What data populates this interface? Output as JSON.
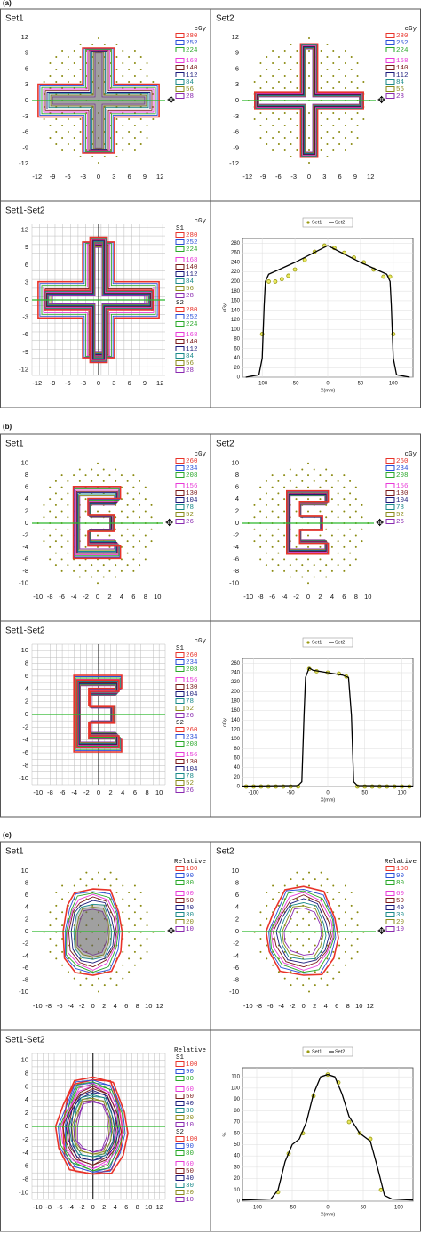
{
  "figures": [
    {
      "label": "(a)",
      "x_ticks": [
        -12,
        -9,
        -6,
        -3,
        0,
        3,
        6,
        9,
        12
      ],
      "y_ticks": [
        12,
        9,
        6,
        3,
        0,
        -3,
        -6,
        -9,
        -12
      ],
      "level_colors": [
        "#e8332a",
        "#2a4fd8",
        "#2aa82a",
        "#e83ad8",
        "#7a1a1a",
        "#1a1a7a",
        "#1a8a8a",
        "#8a8a1a",
        "#8a2ab0"
      ],
      "panels": [
        {
          "title": "Set1",
          "legend": {
            "unit": "cGy",
            "groups": [
              {
                "levels": [
                  280,
                  252,
                  224,
                  168,
                  140,
                  112,
                  84,
                  56,
                  28
                ]
              }
            ]
          }
        },
        {
          "title": "Set2",
          "legend": {
            "unit": "cGy",
            "groups": [
              {
                "levels": [
                  280,
                  252,
                  224,
                  168,
                  140,
                  112,
                  84,
                  56,
                  28
                ]
              }
            ]
          }
        },
        {
          "title": "Set1-Set2",
          "legend": {
            "unit": "cGy",
            "groups": [
              {
                "label": "S1",
                "levels": [
                  280,
                  252,
                  224,
                  168,
                  140,
                  112,
                  84,
                  56,
                  28
                ]
              },
              {
                "label": "S2",
                "levels": [
                  280,
                  252,
                  224,
                  168,
                  140,
                  112,
                  84,
                  56,
                  28
                ]
              }
            ]
          }
        }
      ]
    },
    {
      "label": "(b)",
      "x_ticks": [
        -10,
        -8,
        -6,
        -4,
        -2,
        0,
        2,
        4,
        6,
        8,
        10
      ],
      "y_ticks": [
        10,
        8,
        6,
        4,
        2,
        0,
        -2,
        -4,
        -6,
        -8,
        -10
      ],
      "level_colors": [
        "#e8332a",
        "#2a4fd8",
        "#2aa82a",
        "#e83ad8",
        "#7a1a1a",
        "#1a1a7a",
        "#1a8a8a",
        "#8a8a1a",
        "#8a2ab0"
      ],
      "panels": [
        {
          "title": "Set1",
          "legend": {
            "unit": "cGy",
            "groups": [
              {
                "levels": [
                  260,
                  234,
                  208,
                  156,
                  130,
                  104,
                  78,
                  52,
                  26
                ]
              }
            ]
          }
        },
        {
          "title": "Set2",
          "legend": {
            "unit": "cGy",
            "groups": [
              {
                "levels": [
                  260,
                  234,
                  208,
                  156,
                  130,
                  104,
                  78,
                  52,
                  26
                ]
              }
            ]
          }
        },
        {
          "title": "Set1-Set2",
          "legend": {
            "unit": "cGy",
            "groups": [
              {
                "label": "S1",
                "levels": [
                  260,
                  234,
                  208,
                  156,
                  130,
                  104,
                  78,
                  52,
                  26
                ]
              },
              {
                "label": "S2",
                "levels": [
                  260,
                  234,
                  208,
                  156,
                  130,
                  104,
                  78,
                  52,
                  26
                ]
              }
            ]
          }
        }
      ]
    },
    {
      "label": "(c)",
      "x_ticks": [
        -10,
        -8,
        -6,
        -4,
        -2,
        0,
        2,
        4,
        6,
        8,
        10,
        12
      ],
      "y_ticks": [
        10,
        8,
        6,
        4,
        2,
        0,
        -2,
        -4,
        -6,
        -8,
        -10
      ],
      "level_colors": [
        "#e8332a",
        "#2a4fd8",
        "#2aa82a",
        "#e83ad8",
        "#7a1a1a",
        "#1a1a7a",
        "#1a8a8a",
        "#8a8a1a",
        "#8a2ab0"
      ],
      "panels": [
        {
          "title": "Set1",
          "legend": {
            "unit": "Relative",
            "groups": [
              {
                "levels": [
                  100,
                  90,
                  80,
                  60,
                  50,
                  40,
                  30,
                  20,
                  10
                ]
              }
            ]
          }
        },
        {
          "title": "Set2",
          "legend": {
            "unit": "Relative",
            "groups": [
              {
                "levels": [
                  100,
                  90,
                  80,
                  60,
                  50,
                  40,
                  30,
                  20,
                  10
                ]
              }
            ]
          }
        },
        {
          "title": "Set1-Set2",
          "legend": {
            "unit": "Relative",
            "groups": [
              {
                "label": "S1",
                "levels": [
                  100,
                  90,
                  80,
                  60,
                  50,
                  40,
                  30,
                  20,
                  10
                ]
              },
              {
                "label": "S2",
                "levels": [
                  100,
                  90,
                  80,
                  60,
                  50,
                  40,
                  30,
                  20,
                  10
                ]
              }
            ]
          }
        }
      ]
    }
  ],
  "chart_data": [
    {
      "type": "line",
      "xlabel": "X(mm)",
      "ylabel": "cGy",
      "xlim": [
        -130,
        130
      ],
      "ylim": [
        0,
        290
      ],
      "xticks": [
        -100,
        -50,
        0,
        50,
        100
      ],
      "yticks": [
        0,
        20,
        40,
        60,
        80,
        100,
        120,
        140,
        160,
        180,
        200,
        220,
        240,
        260,
        280
      ],
      "series": [
        {
          "name": "Set1",
          "color": "#9a9a10",
          "x": [
            -100,
            -90,
            -80,
            -70,
            -60,
            -50,
            -35,
            -20,
            -5,
            10,
            25,
            40,
            55,
            70,
            85,
            95,
            100
          ],
          "values": [
            90,
            200,
            200,
            205,
            212,
            225,
            245,
            262,
            275,
            270,
            260,
            250,
            240,
            225,
            210,
            210,
            90
          ]
        },
        {
          "name": "Set2",
          "color": "#000000",
          "x": [
            -125,
            -105,
            -100,
            -97,
            -95,
            -90,
            -50,
            0,
            50,
            90,
            95,
            97,
            100,
            105,
            125
          ],
          "values": [
            0,
            5,
            40,
            150,
            200,
            215,
            240,
            275,
            240,
            215,
            200,
            150,
            40,
            5,
            0
          ]
        }
      ]
    },
    {
      "type": "line",
      "xlabel": "X(mm)",
      "ylabel": "cGy",
      "xlim": [
        -115,
        115
      ],
      "ylim": [
        0,
        270
      ],
      "xticks": [
        -100,
        -50,
        0,
        50,
        100
      ],
      "yticks": [
        0,
        20,
        40,
        60,
        80,
        100,
        120,
        140,
        160,
        180,
        200,
        220,
        240,
        260
      ],
      "series": [
        {
          "name": "Set1",
          "color": "#9a9a10",
          "x": [
            -110,
            -100,
            -90,
            -80,
            -70,
            -60,
            -50,
            -40,
            -25,
            -15,
            0,
            15,
            25,
            40,
            50,
            60,
            70,
            80,
            90,
            100,
            110
          ],
          "values": [
            0,
            0,
            0,
            0,
            0,
            0,
            0,
            0,
            248,
            243,
            240,
            238,
            232,
            0,
            0,
            0,
            0,
            0,
            0,
            0,
            0
          ]
        },
        {
          "name": "Set2",
          "color": "#000000",
          "x": [
            -115,
            -40,
            -35,
            -32,
            -30,
            -25,
            -20,
            0,
            20,
            28,
            32,
            35,
            40,
            115
          ],
          "values": [
            1,
            2,
            10,
            150,
            230,
            250,
            245,
            240,
            235,
            230,
            150,
            10,
            2,
            1
          ]
        }
      ]
    },
    {
      "type": "line",
      "xlabel": "X(mm)",
      "ylabel": "%",
      "xlim": [
        -120,
        120
      ],
      "ylim": [
        0,
        118
      ],
      "xticks": [
        -100,
        -50,
        0,
        50,
        100
      ],
      "yticks": [
        0,
        10,
        20,
        30,
        40,
        50,
        60,
        70,
        80,
        90,
        100,
        110
      ],
      "series": [
        {
          "name": "Set1",
          "color": "#9a9a10",
          "x": [
            -70,
            -55,
            -35,
            -20,
            0,
            15,
            30,
            45,
            60,
            75
          ],
          "values": [
            8,
            42,
            60,
            93,
            112,
            105,
            70,
            60,
            55,
            10
          ]
        },
        {
          "name": "Set2",
          "color": "#000000",
          "x": [
            -120,
            -80,
            -70,
            -60,
            -50,
            -40,
            -30,
            -20,
            -10,
            0,
            10,
            20,
            30,
            45,
            60,
            70,
            80,
            90,
            120
          ],
          "values": [
            1,
            2,
            10,
            35,
            50,
            55,
            70,
            95,
            110,
            112,
            110,
            95,
            75,
            60,
            53,
            30,
            5,
            2,
            1
          ]
        }
      ]
    }
  ]
}
